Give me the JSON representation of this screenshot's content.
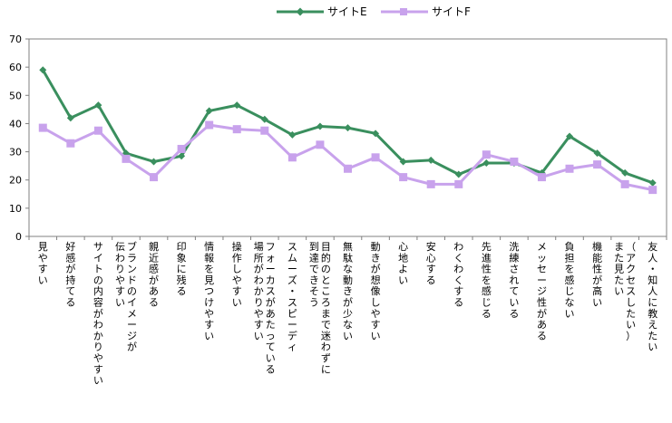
{
  "chart_data": {
    "type": "line",
    "ylim": [
      0,
      70
    ],
    "yticks": [
      0,
      10,
      20,
      30,
      40,
      50,
      60,
      70
    ],
    "grid": false,
    "legend": "top-center",
    "categories": [
      [
        "見やすい"
      ],
      [
        "好感が持てる"
      ],
      [
        "サイトの内容がわかりやすい"
      ],
      [
        "ブランドのイメージが",
        "伝わりやすい"
      ],
      [
        "親近感がある"
      ],
      [
        "印象に残る"
      ],
      [
        "情報を見つけやすい"
      ],
      [
        "操作しやすい"
      ],
      [
        "フォーカスがあたっている",
        "場所がわかりやすい"
      ],
      [
        "スムーズ・スピーディ"
      ],
      [
        "目的のところまで迷わずに",
        "到達できそう"
      ],
      [
        "無駄な動きが少ない"
      ],
      [
        "動きが想像しやすい"
      ],
      [
        "心地よい"
      ],
      [
        "安心する"
      ],
      [
        "わくわくする"
      ],
      [
        "先進性を感じる"
      ],
      [
        "洗練されている"
      ],
      [
        "メッセージ性がある"
      ],
      [
        "負担を感じない"
      ],
      [
        "機能性が高い"
      ],
      [
        "（アクセスしたい）",
        "また見たい"
      ],
      [
        "友人・知人に教えたい"
      ]
    ],
    "series": [
      {
        "name": "サイトE",
        "color": "#3a8f5e",
        "marker": "diamond",
        "values": [
          59,
          42,
          46.5,
          29.5,
          26.5,
          28.5,
          44.5,
          46.5,
          41.5,
          36,
          39,
          38.5,
          36.5,
          26.5,
          27,
          22,
          26,
          26,
          22.5,
          35.5,
          29.5,
          22.5,
          19
        ]
      },
      {
        "name": "サイトF",
        "color": "#c8a2ec",
        "marker": "square",
        "values": [
          38.5,
          33,
          37.5,
          27.5,
          21,
          31,
          39.5,
          38,
          37.5,
          28,
          32.5,
          24,
          28,
          21,
          18.5,
          18.5,
          29,
          26.5,
          21,
          24,
          25.5,
          18.5,
          16.5
        ]
      }
    ]
  }
}
